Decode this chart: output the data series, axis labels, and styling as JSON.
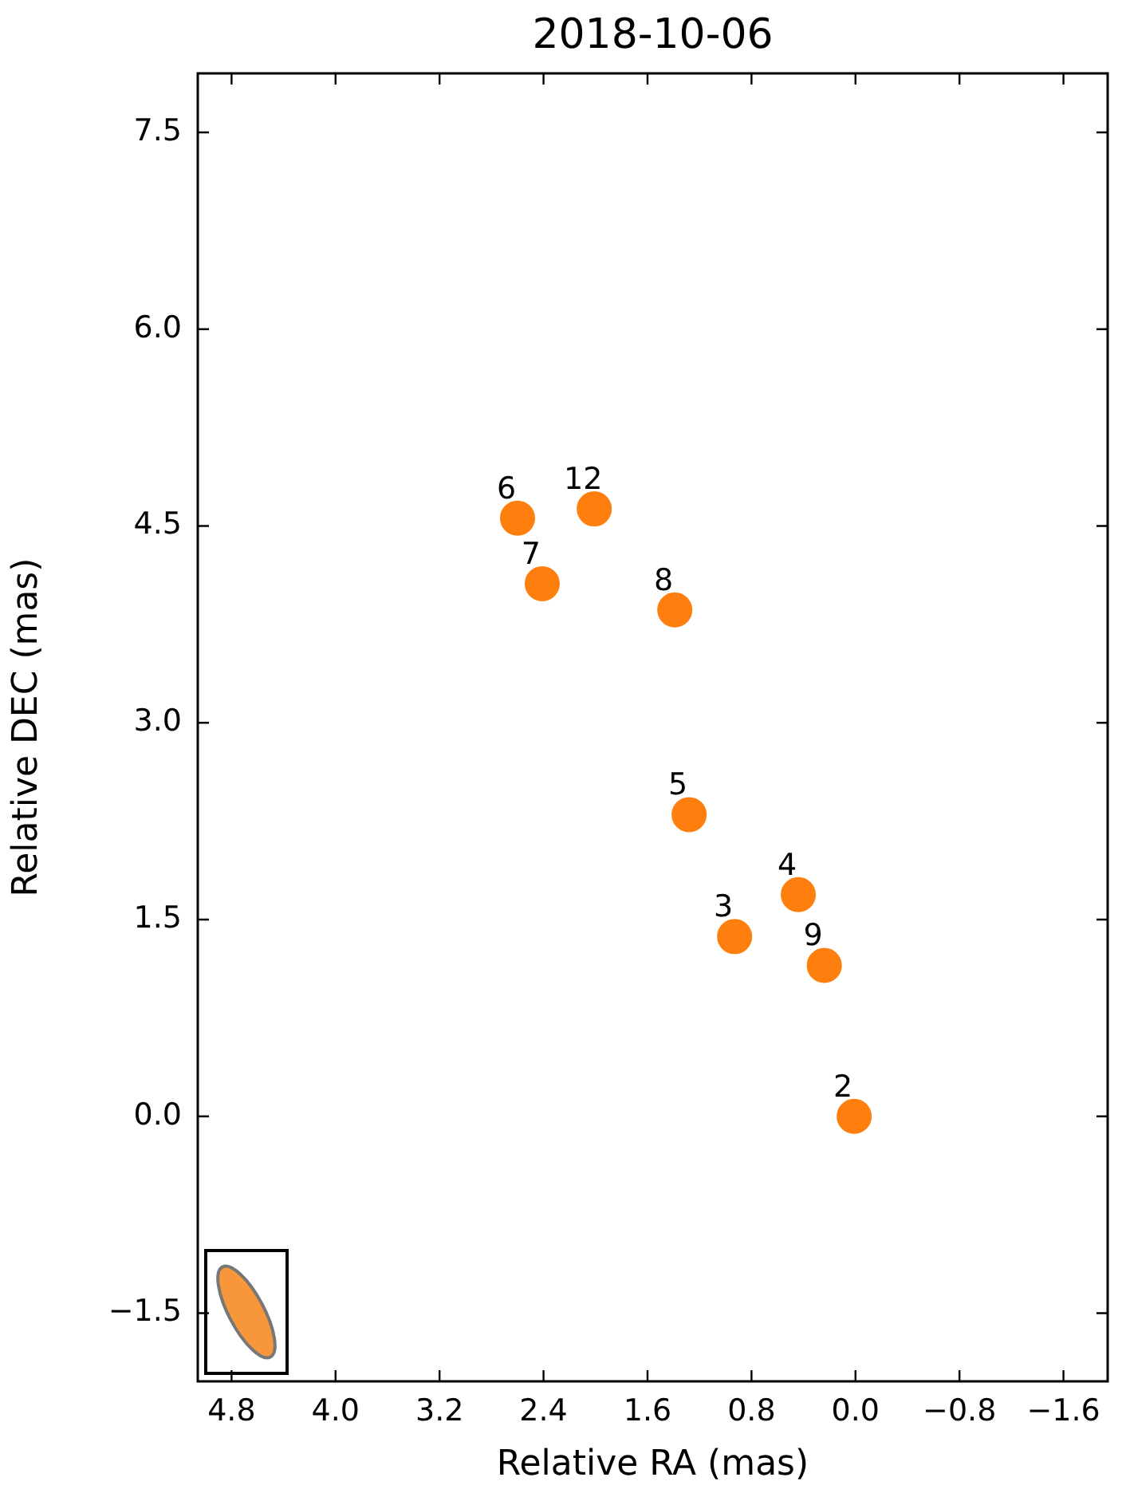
{
  "chart_data": {
    "type": "scatter",
    "title": "2018-10-06",
    "xlabel": "Relative RA (mas)",
    "ylabel": "Relative DEC (mas)",
    "xlim": [
      5.06,
      -1.94
    ],
    "ylim": [
      -2.02,
      7.95
    ],
    "xticks": [
      {
        "value": 4.8,
        "label": "4.8"
      },
      {
        "value": 4.0,
        "label": "4.0"
      },
      {
        "value": 3.2,
        "label": "3.2"
      },
      {
        "value": 2.4,
        "label": "2.4"
      },
      {
        "value": 1.6,
        "label": "1.6"
      },
      {
        "value": 0.8,
        "label": "0.8"
      },
      {
        "value": 0,
        "label": "0.0"
      },
      {
        "value": -0.8,
        "label": "−0.8"
      },
      {
        "value": -1.6,
        "label": "−1.6"
      }
    ],
    "yticks": [
      {
        "value": -1.5,
        "label": "−1.5"
      },
      {
        "value": 0,
        "label": "0.0"
      },
      {
        "value": 1.5,
        "label": "1.5"
      },
      {
        "value": 3.0,
        "label": "3.0"
      },
      {
        "value": 4.5,
        "label": "4.5"
      },
      {
        "value": 6.0,
        "label": "6.0"
      },
      {
        "value": 7.5,
        "label": "7.5"
      }
    ],
    "grid": false,
    "legend": false,
    "marker": "circle",
    "series": [
      {
        "color": "#ff7f0e",
        "x": [
          2.6,
          2.01,
          2.41,
          1.39,
          1.28,
          0.93,
          0.44,
          0.24,
          0.01
        ],
        "values": [
          4.56,
          4.63,
          4.06,
          3.86,
          2.3,
          1.37,
          1.69,
          1.15,
          0.0
        ]
      }
    ],
    "annotations": [
      {
        "text": "6",
        "x": 2.6,
        "y": 4.56
      },
      {
        "text": "12",
        "x": 2.01,
        "y": 4.63
      },
      {
        "text": "7",
        "x": 2.41,
        "y": 4.06
      },
      {
        "text": "8",
        "x": 1.39,
        "y": 3.86
      },
      {
        "text": "5",
        "x": 1.28,
        "y": 2.3
      },
      {
        "text": "3",
        "x": 0.93,
        "y": 1.37
      },
      {
        "text": "4",
        "x": 0.44,
        "y": 1.69
      },
      {
        "text": "9",
        "x": 0.24,
        "y": 1.15
      },
      {
        "text": "2",
        "x": 0.01,
        "y": 0.0
      }
    ]
  }
}
